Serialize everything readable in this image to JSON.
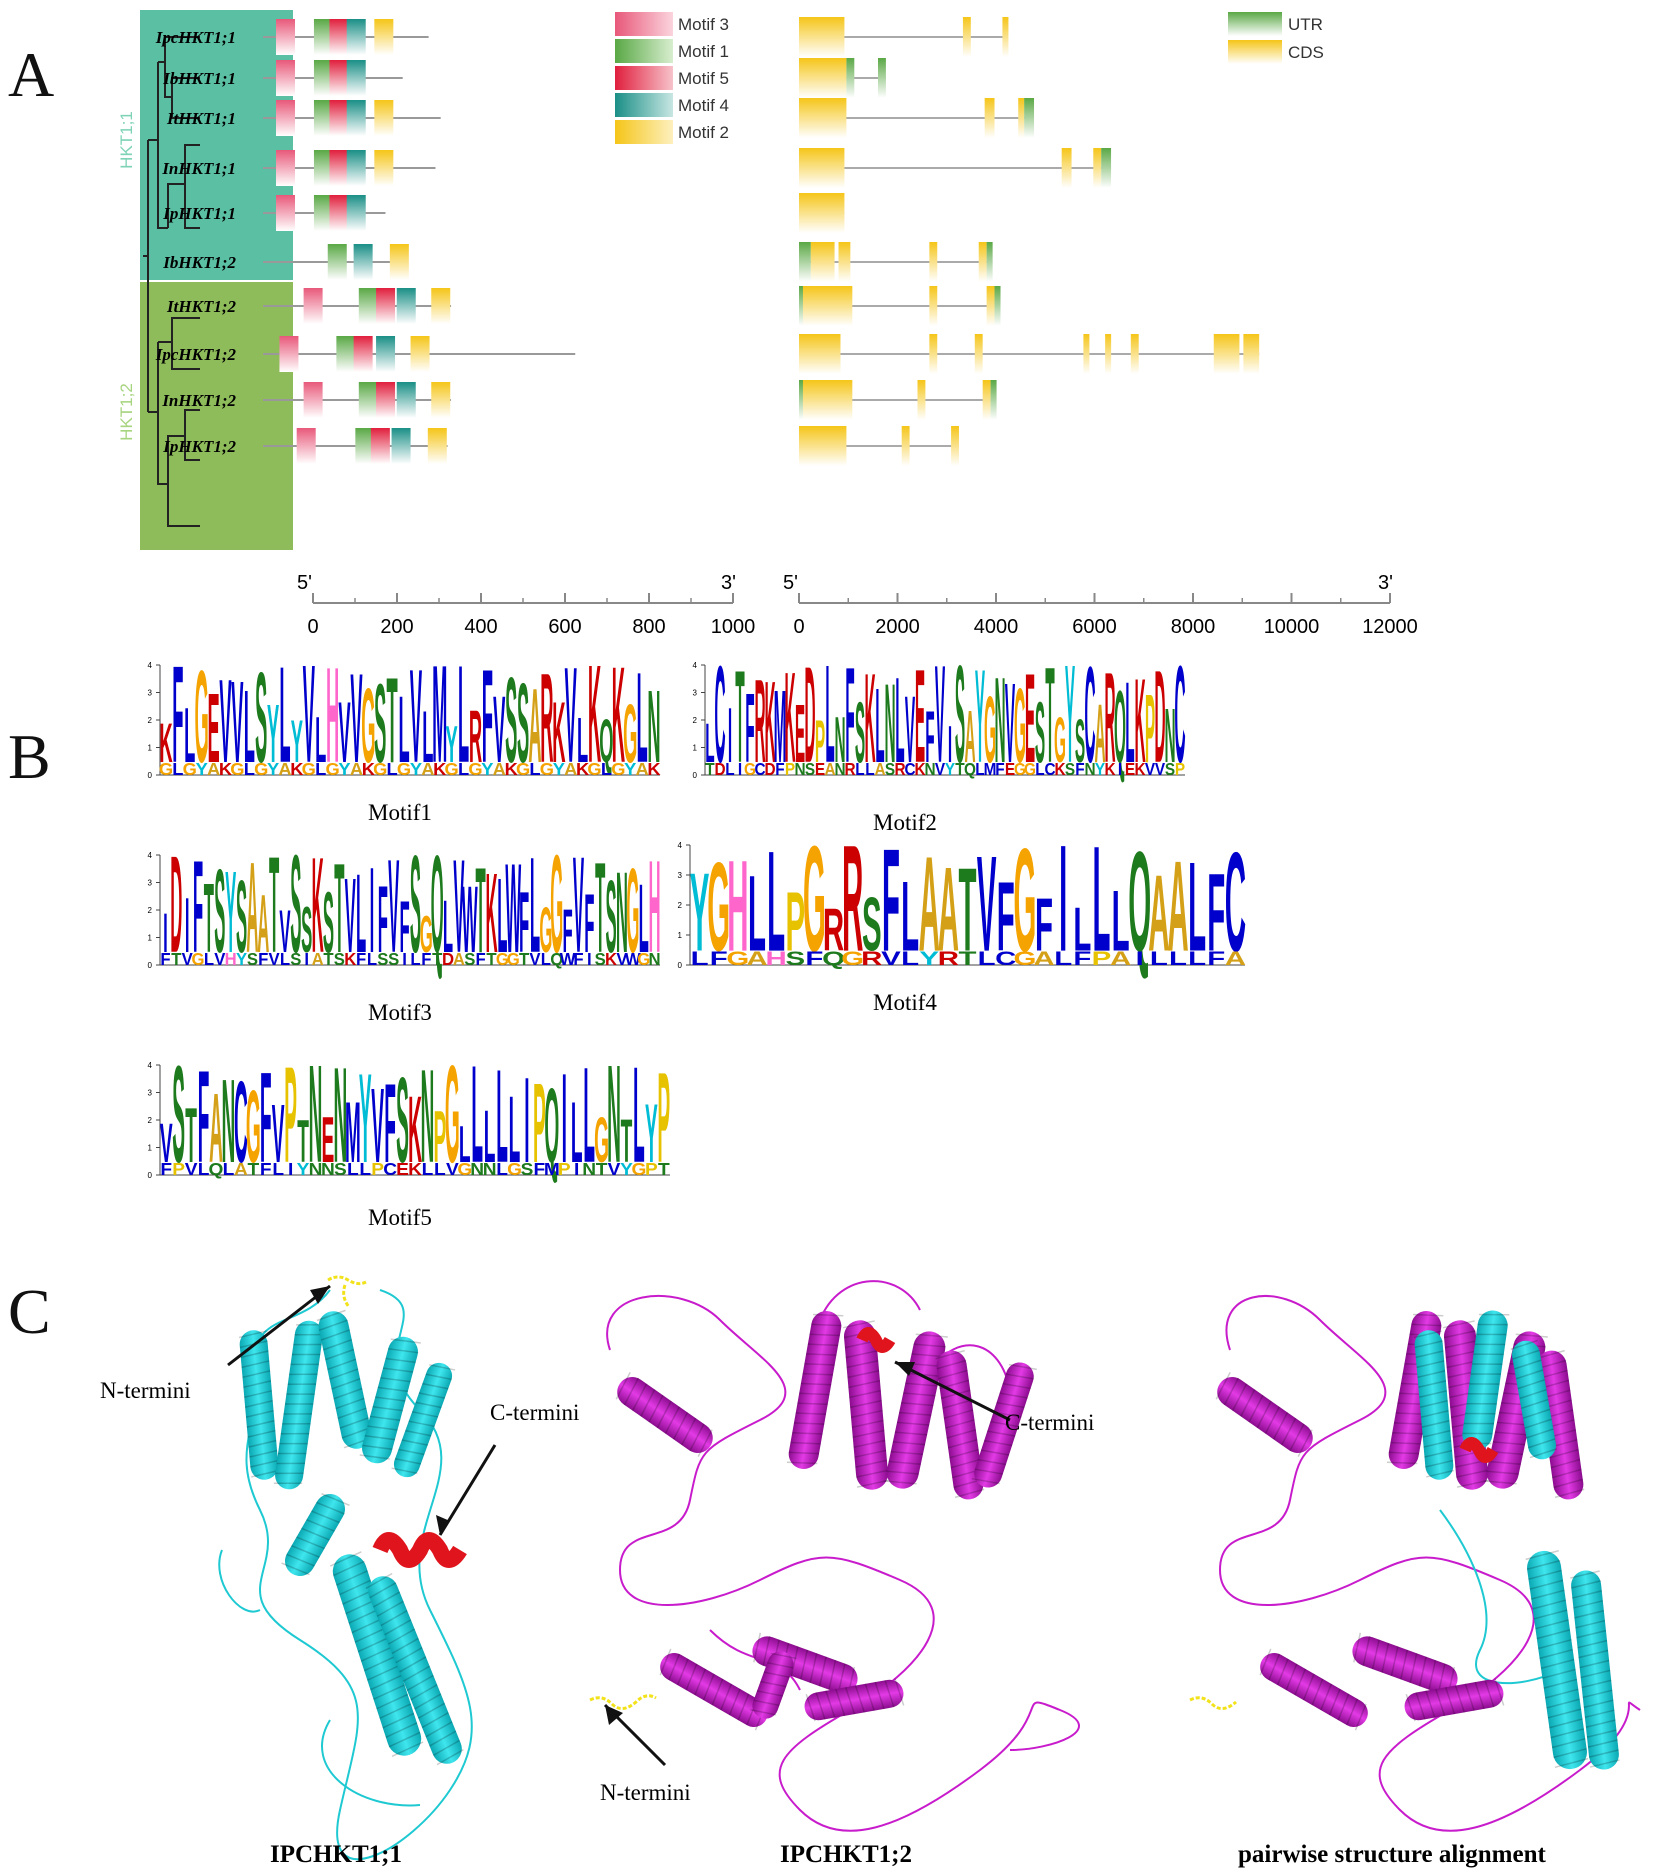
{
  "panels": {
    "a": "A",
    "b": "B",
    "c": "C"
  },
  "clades": {
    "hkt11": "HKT1;1",
    "hkt12": "HKT1;2"
  },
  "genes": [
    "IpcHKT1;1",
    "IbHKT1;1",
    "ItHKT1;1",
    "InHKT1;1",
    "IpHKT1;1",
    "IbHKT1;2",
    "ItHKT1;2",
    "IpcHKT1;2",
    "InHKT1;2",
    "IpHKT1;2"
  ],
  "motif_legend": [
    "Motif 3",
    "Motif 1",
    "Motif 5",
    "Motif 4",
    "Motif 2"
  ],
  "struct_legend": [
    "UTR",
    "CDS"
  ],
  "motif_axis": {
    "five": "5'",
    "three": "3'",
    "ticks": [
      "0",
      "200",
      "400",
      "600",
      "800",
      "1000"
    ]
  },
  "gene_axis": {
    "five": "5'",
    "three": "3'",
    "ticks": [
      "0",
      "2000",
      "4000",
      "6000",
      "8000",
      "10000",
      "12000"
    ]
  },
  "logos": {
    "m1": "Motif1",
    "m2": "Motif2",
    "m3": "Motif3",
    "m4": "Motif4",
    "m5": "Motif5"
  },
  "logo_seqs": {
    "m1": "KFLGEVVLSYLYVLHVVGSTLVLMYLRFVSSARKVLKQKGLN",
    "m2": "LCITFRKMKEDPLNFSKLNLVEFVISAYGNVGESTGYSCARQLKPDNC",
    "m3": "IDIFTSYSAATVSSKSTVLIFVFSGQLVWTKLWFLGGFVFTSNGLH",
    "m4": "YGHLLPGRRSFLAATVFGFILLLQAALFC",
    "m5": "VSTFANCGFVPTNENMYVFSKNPGLLLLLIPQILLGNTLYP"
  },
  "structures": {
    "n_termini": "N-termini",
    "c_termini": "C-termini",
    "cap1": "IPCHKT1;1",
    "cap2": "IPCHKT1;2",
    "cap3": "pairwise structure alignment"
  },
  "colors": {
    "motif3": "#e8587a",
    "motif1": "#59a845",
    "motif5": "#e01f3d",
    "motif4": "#1a8f86",
    "motif2": "#f5c518",
    "utr": "#5aa845",
    "cds": "#f5c518",
    "clade1": "#5bbfa3",
    "clade2": "#8ebc5a",
    "cyan": "#2ad4dc",
    "magenta": "#c81ccc",
    "red": "#e0141c",
    "yellow": "#f2e21a"
  }
}
